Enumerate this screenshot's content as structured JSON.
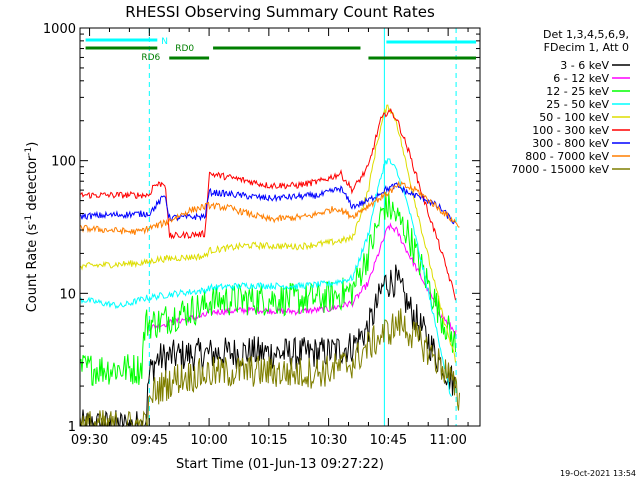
{
  "chart_data": {
    "type": "line",
    "title": "RHESSI Observing Summary Count Rates",
    "xlabel": "Start Time (01-Jun-13 09:27:22)",
    "ylabel_main": "Count Rate (s",
    "ylabel_sup1": "-1",
    "ylabel_mid": " detector",
    "ylabel_sup2": "-1",
    "ylabel_end": ")",
    "footer": "19-Oct-2021 13:54",
    "xlim": [
      -2.4,
      98
    ],
    "ylim": [
      1,
      1000
    ],
    "yscale": "log",
    "x_ticks": [
      {
        "v": 0,
        "label": "09:30"
      },
      {
        "v": 15,
        "label": "09:45"
      },
      {
        "v": 30,
        "label": "10:00"
      },
      {
        "v": 45,
        "label": "10:15"
      },
      {
        "v": 60,
        "label": "10:30"
      },
      {
        "v": 75,
        "label": "10:45"
      },
      {
        "v": 90,
        "label": "11:00"
      }
    ],
    "y_ticks": [
      {
        "v": 1,
        "label": "1"
      },
      {
        "v": 10,
        "label": "10"
      },
      {
        "v": 100,
        "label": "100"
      },
      {
        "v": 1000,
        "label": "1000"
      }
    ],
    "legend_header": [
      "Det 1,3,4,5,6,9,",
      "FDecim 1, Att 0"
    ],
    "series": [
      {
        "name": "3 - 6 keV",
        "color": "#000000",
        "points": [
          [
            -2.4,
            1.0
          ],
          [
            14,
            1.0
          ],
          [
            15,
            2.5
          ],
          [
            17,
            3.2
          ],
          [
            22,
            3.4
          ],
          [
            30,
            3.5
          ],
          [
            40,
            3.6
          ],
          [
            52,
            3.5
          ],
          [
            60,
            3.6
          ],
          [
            66,
            4.0
          ],
          [
            70,
            5.5
          ],
          [
            72,
            8
          ],
          [
            74,
            12
          ],
          [
            77,
            12.5
          ],
          [
            80,
            8
          ],
          [
            84,
            5
          ],
          [
            88,
            3
          ],
          [
            92,
            2
          ]
        ]
      },
      {
        "name": "6 - 12 keV",
        "color": "#ff00ff",
        "points": [
          [
            15,
            5.5
          ],
          [
            22,
            6.2
          ],
          [
            29,
            6.8
          ],
          [
            30,
            7.2
          ],
          [
            40,
            7.5
          ],
          [
            52,
            7.3
          ],
          [
            60,
            7.6
          ],
          [
            66,
            8.5
          ],
          [
            70,
            12
          ],
          [
            73,
            22
          ],
          [
            75,
            32
          ],
          [
            77,
            30
          ],
          [
            80,
            20
          ],
          [
            84,
            12
          ],
          [
            88,
            7
          ],
          [
            92,
            5
          ]
        ]
      },
      {
        "name": "12 - 25 keV",
        "color": "#00ff00",
        "points": [
          [
            -2.4,
            2.7
          ],
          [
            13,
            2.7
          ],
          [
            14,
            6
          ],
          [
            17,
            6
          ],
          [
            22,
            7
          ],
          [
            29,
            8
          ],
          [
            30,
            8.8
          ],
          [
            40,
            9
          ],
          [
            52,
            9
          ],
          [
            60,
            9.3
          ],
          [
            66,
            10.5
          ],
          [
            70,
            20
          ],
          [
            72,
            30
          ],
          [
            74,
            46
          ],
          [
            76,
            42
          ],
          [
            80,
            28
          ],
          [
            84,
            14
          ],
          [
            88,
            7
          ],
          [
            92,
            4
          ]
        ]
      },
      {
        "name": "25 - 50 keV",
        "color": "#00ffff",
        "points": [
          [
            -2.4,
            9
          ],
          [
            8,
            8
          ],
          [
            14,
            9.2
          ],
          [
            17,
            9.5
          ],
          [
            22,
            10
          ],
          [
            29,
            10.5
          ],
          [
            30,
            11
          ],
          [
            40,
            11.5
          ],
          [
            52,
            11.3
          ],
          [
            60,
            11.8
          ],
          [
            66,
            13
          ],
          [
            70,
            28
          ],
          [
            72,
            55
          ],
          [
            74,
            95
          ],
          [
            75,
            102
          ],
          [
            77,
            85
          ],
          [
            80,
            45
          ],
          [
            84,
            14
          ],
          [
            88,
            4
          ],
          [
            91,
            1.5
          ]
        ]
      },
      {
        "name": "50 - 100 keV",
        "color": "#dddd00",
        "points": [
          [
            -2.4,
            16
          ],
          [
            14,
            17
          ],
          [
            17,
            18
          ],
          [
            22,
            18.5
          ],
          [
            29,
            19
          ],
          [
            30,
            21
          ],
          [
            40,
            23
          ],
          [
            52,
            22.5
          ],
          [
            60,
            24
          ],
          [
            66,
            26
          ],
          [
            70,
            60
          ],
          [
            72,
            130
          ],
          [
            74,
            230
          ],
          [
            75,
            260
          ],
          [
            77,
            200
          ],
          [
            80,
            80
          ],
          [
            84,
            25
          ],
          [
            88,
            8
          ],
          [
            92,
            3
          ]
        ]
      },
      {
        "name": "100 - 300 keV",
        "color": "#ff0000",
        "points": [
          [
            -2.4,
            55
          ],
          [
            15,
            55
          ],
          [
            16,
            65
          ],
          [
            19,
            68
          ],
          [
            20,
            27
          ],
          [
            29,
            28
          ],
          [
            30,
            80
          ],
          [
            38,
            72
          ],
          [
            45,
            65
          ],
          [
            52,
            65
          ],
          [
            58,
            70
          ],
          [
            63,
            80
          ],
          [
            66,
            60
          ],
          [
            70,
            90
          ],
          [
            73,
            200
          ],
          [
            75,
            240
          ],
          [
            77,
            210
          ],
          [
            80,
            120
          ],
          [
            84,
            50
          ],
          [
            88,
            22
          ],
          [
            92,
            9
          ]
        ]
      },
      {
        "name": "300 - 800 keV",
        "color": "#0000ff",
        "points": [
          [
            -2.4,
            38
          ],
          [
            15,
            40
          ],
          [
            19,
            55
          ],
          [
            20,
            37
          ],
          [
            29,
            38
          ],
          [
            30,
            58
          ],
          [
            45,
            52
          ],
          [
            58,
            55
          ],
          [
            63,
            62
          ],
          [
            66,
            45
          ],
          [
            70,
            50
          ],
          [
            74,
            60
          ],
          [
            77,
            65
          ],
          [
            80,
            57
          ],
          [
            84,
            52
          ],
          [
            88,
            44
          ],
          [
            92,
            33
          ]
        ]
      },
      {
        "name": "800 - 7000 keV",
        "color": "#ff7f00",
        "points": [
          [
            -2.4,
            31
          ],
          [
            12,
            29
          ],
          [
            19,
            34
          ],
          [
            25,
            42
          ],
          [
            30,
            46
          ],
          [
            35,
            44
          ],
          [
            45,
            36
          ],
          [
            55,
            38
          ],
          [
            62,
            44
          ],
          [
            66,
            38
          ],
          [
            70,
            46
          ],
          [
            74,
            55
          ],
          [
            78,
            66
          ],
          [
            82,
            60
          ],
          [
            86,
            48
          ],
          [
            90,
            38
          ],
          [
            93,
            32
          ]
        ]
      },
      {
        "name": "7000 - 15000 keV",
        "color": "#7f7f00",
        "points": [
          [
            -2.4,
            1.0
          ],
          [
            14,
            1.0
          ],
          [
            16,
            1.8
          ],
          [
            22,
            2.3
          ],
          [
            30,
            2.5
          ],
          [
            40,
            2.6
          ],
          [
            52,
            2.5
          ],
          [
            60,
            2.6
          ],
          [
            66,
            3
          ],
          [
            70,
            4
          ],
          [
            74,
            5
          ],
          [
            78,
            6
          ],
          [
            84,
            4
          ],
          [
            90,
            2.5
          ],
          [
            93,
            1.5
          ]
        ]
      }
    ],
    "annotations": [
      {
        "label": "N",
        "color": "#00ffff"
      },
      {
        "label": "RD0",
        "color": "#007f00"
      },
      {
        "label": "RD6",
        "color": "#007f00"
      }
    ]
  }
}
